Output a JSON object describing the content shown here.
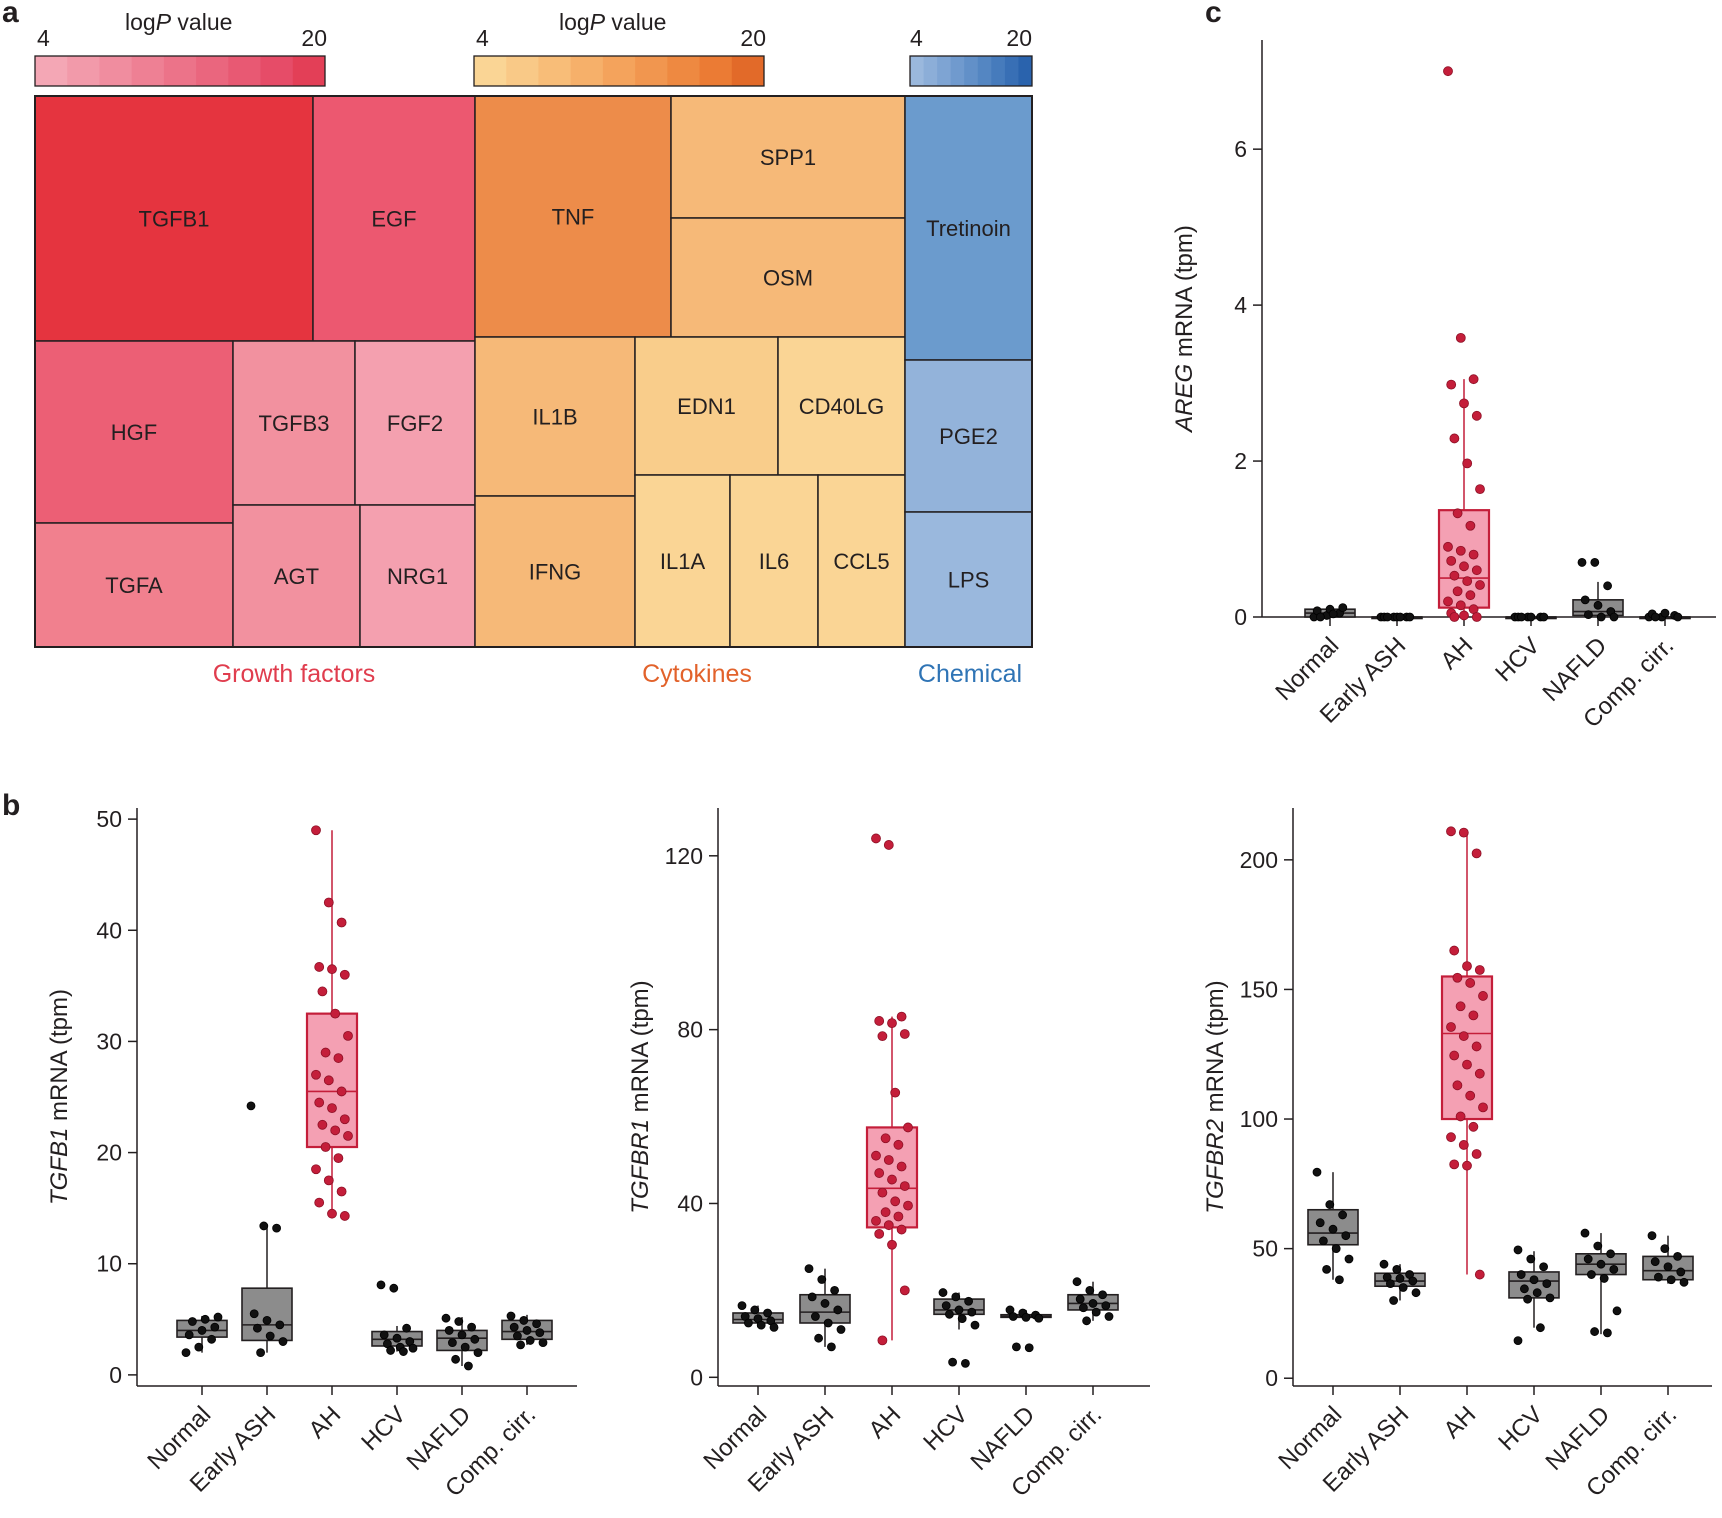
{
  "figure": {
    "panel_labels": [
      "a",
      "b",
      "c"
    ]
  },
  "treemap": {
    "legends": [
      {
        "title_prefix": "log",
        "title_italic": "P",
        "title_suffix": " value",
        "min_label": "4",
        "max_label": "20",
        "colors": [
          "#f4a7b5",
          "#f29aaa",
          "#f08d9f",
          "#ee8094",
          "#ec7389",
          "#ea667e",
          "#e85973",
          "#e64c68",
          "#e33f57"
        ]
      },
      {
        "title_prefix": "log",
        "title_italic": "P",
        "title_suffix": " value",
        "min_label": "4",
        "max_label": "20",
        "colors": [
          "#fad595",
          "#f9c987",
          "#f8bd78",
          "#f6b06a",
          "#f4a35c",
          "#f1964f",
          "#ee8941",
          "#eb7b34",
          "#e26a29"
        ]
      },
      {
        "title_prefix": "",
        "title_italic": "",
        "title_suffix": "",
        "min_label": "4",
        "max_label": "20",
        "colors": [
          "#9ab8dd",
          "#8caed8",
          "#7ea4d3",
          "#709ace",
          "#6290c8",
          "#5486c2",
          "#467bbc",
          "#386fb5",
          "#2a63ad"
        ]
      }
    ],
    "categories": [
      {
        "name": "Growth factors",
        "color": "#e03d4e"
      },
      {
        "name": "Cytokines",
        "color": "#e2622b"
      },
      {
        "name": "Chemical",
        "color": "#2f74b5"
      }
    ],
    "cells": [
      {
        "label": "TGFB1",
        "color": "#e5343f"
      },
      {
        "label": "EGF",
        "color": "#ec5870"
      },
      {
        "label": "HGF",
        "color": "#ec5f75"
      },
      {
        "label": "TGFB3",
        "color": "#f2919f"
      },
      {
        "label": "FGF2",
        "color": "#f4a0af"
      },
      {
        "label": "TGFA",
        "color": "#f1808e"
      },
      {
        "label": "AGT",
        "color": "#f2919f"
      },
      {
        "label": "NRG1",
        "color": "#f4a0af"
      },
      {
        "label": "TNF",
        "color": "#ed8c4a"
      },
      {
        "label": "SPP1",
        "color": "#f6b978"
      },
      {
        "label": "OSM",
        "color": "#f6b978"
      },
      {
        "label": "IL1B",
        "color": "#f6b978"
      },
      {
        "label": "EDN1",
        "color": "#f9cd8b"
      },
      {
        "label": "CD40LG",
        "color": "#fad595"
      },
      {
        "label": "IFNG",
        "color": "#f6b978"
      },
      {
        "label": "IL1A",
        "color": "#fad595"
      },
      {
        "label": "IL6",
        "color": "#fad595"
      },
      {
        "label": "CCL5",
        "color": "#fad595"
      },
      {
        "label": "Tretinoin",
        "color": "#6b9bcd"
      },
      {
        "label": "PGE2",
        "color": "#93b3da"
      },
      {
        "label": "LPS",
        "color": "#9ab8dd"
      }
    ]
  },
  "chart_data": [
    {
      "id": "AREG",
      "panel": "c",
      "type": "box",
      "ylabel_italic": "AREG",
      "ylabel_rest": " mRNA (tpm)",
      "ylim": [
        0,
        7.4
      ],
      "yticks": [
        0,
        2,
        4,
        6
      ],
      "categories": [
        "Normal",
        "Early ASH",
        "AH",
        "HCV",
        "NAFLD",
        "Comp. cirr."
      ],
      "highlight_category": "AH",
      "boxes": [
        {
          "q1": 0.0,
          "median": 0.05,
          "q3": 0.1,
          "whisker_low": 0.0,
          "whisker_high": 0.12
        },
        {
          "q1": 0.0,
          "median": 0.0,
          "q3": 0.0,
          "whisker_low": 0.0,
          "whisker_high": 0.0
        },
        {
          "q1": 0.12,
          "median": 0.5,
          "q3": 1.37,
          "whisker_low": 0.0,
          "whisker_high": 3.05
        },
        {
          "q1": 0.0,
          "median": 0.0,
          "q3": 0.0,
          "whisker_low": 0.0,
          "whisker_high": 0.0
        },
        {
          "q1": 0.02,
          "median": 0.07,
          "q3": 0.22,
          "whisker_low": 0.0,
          "whisker_high": 0.45
        },
        {
          "q1": 0.0,
          "median": 0.0,
          "q3": 0.0,
          "whisker_low": 0.0,
          "whisker_high": 0.0
        }
      ],
      "points": [
        [
          0.0,
          0.02,
          0.05,
          0.08,
          0.1,
          0.12,
          0.0,
          0.04
        ],
        [
          0.0,
          0.0,
          0.0,
          0.0,
          0.0,
          0.0,
          0.0,
          0.0
        ],
        [
          7.0,
          3.58,
          3.05,
          2.98,
          2.74,
          2.58,
          2.29,
          1.97,
          1.64,
          1.33,
          1.17,
          0.9,
          0.85,
          0.8,
          0.72,
          0.65,
          0.6,
          0.53,
          0.46,
          0.41,
          0.33,
          0.28,
          0.2,
          0.15,
          0.1,
          0.05,
          0.02,
          0.0,
          0.0
        ],
        [
          0.0,
          0.0,
          0.0,
          0.0,
          0.0,
          0.0,
          0.0
        ],
        [
          0.7,
          0.7,
          0.4,
          0.22,
          0.15,
          0.07,
          0.03,
          0.0,
          0.0
        ],
        [
          0.0,
          0.0,
          0.02,
          0.04,
          0.05,
          0.0,
          0.0
        ]
      ]
    },
    {
      "id": "TGFB1",
      "panel": "b",
      "type": "box",
      "ylabel_italic": "TGFB1",
      "ylabel_rest": " mRNA (tpm)",
      "ylim": [
        -1,
        51
      ],
      "yticks": [
        0,
        10,
        20,
        30,
        40,
        50
      ],
      "categories": [
        "Normal",
        "Early ASH",
        "AH",
        "HCV",
        "NAFLD",
        "Comp. cirr."
      ],
      "highlight_category": "AH",
      "boxes": [
        {
          "q1": 3.4,
          "median": 4.0,
          "q3": 4.9,
          "whisker_low": 2.0,
          "whisker_high": 5.3
        },
        {
          "q1": 3.1,
          "median": 4.5,
          "q3": 7.8,
          "whisker_low": 2.0,
          "whisker_high": 13.5
        },
        {
          "q1": 20.5,
          "median": 25.5,
          "q3": 32.5,
          "whisker_low": 14.2,
          "whisker_high": 49.0
        },
        {
          "q1": 2.6,
          "median": 3.2,
          "q3": 3.9,
          "whisker_low": 2.1,
          "whisker_high": 4.4
        },
        {
          "q1": 2.2,
          "median": 3.3,
          "q3": 4.0,
          "whisker_low": 0.8,
          "whisker_high": 5.2
        },
        {
          "q1": 3.2,
          "median": 3.9,
          "q3": 4.9,
          "whisker_low": 2.7,
          "whisker_high": 5.4
        }
      ],
      "points": [
        [
          2.0,
          2.5,
          3.2,
          3.6,
          4.0,
          4.3,
          4.8,
          5.0,
          5.2
        ],
        [
          24.2,
          13.4,
          13.2,
          5.5,
          4.9,
          4.5,
          4.2,
          3.5,
          3.0,
          2.0
        ],
        [
          49.0,
          42.5,
          40.7,
          36.7,
          36.5,
          36.0,
          34.5,
          32.5,
          30.5,
          29.0,
          28.5,
          27.0,
          26.5,
          25.5,
          24.5,
          24.0,
          23.0,
          22.5,
          22.0,
          21.5,
          20.5,
          19.5,
          18.5,
          17.5,
          16.5,
          15.5,
          14.5,
          14.3
        ],
        [
          8.1,
          7.8,
          4.2,
          3.6,
          3.3,
          3.0,
          2.8,
          2.5,
          2.4,
          2.2,
          2.1
        ],
        [
          5.1,
          4.8,
          4.3,
          4.0,
          3.6,
          3.2,
          2.9,
          2.5,
          2.0,
          1.4,
          0.8
        ],
        [
          5.3,
          4.9,
          4.6,
          4.3,
          4.0,
          3.8,
          3.5,
          3.1,
          2.9,
          2.7
        ]
      ]
    },
    {
      "id": "TGFBR1",
      "panel": "b",
      "type": "box",
      "ylabel_italic": "TGFBR1",
      "ylabel_rest": " mRNA (tpm)",
      "ylim": [
        -2,
        131
      ],
      "yticks": [
        0,
        40,
        80,
        120
      ],
      "categories": [
        "Normal",
        "Early ASH",
        "AH",
        "HCV",
        "NAFLD",
        "Comp. cirr."
      ],
      "highlight_category": "AH",
      "boxes": [
        {
          "q1": 12.5,
          "median": 13.3,
          "q3": 14.8,
          "whisker_low": 11.5,
          "whisker_high": 16.5
        },
        {
          "q1": 12.5,
          "median": 15.0,
          "q3": 19.0,
          "whisker_low": 7.0,
          "whisker_high": 25.0
        },
        {
          "q1": 34.5,
          "median": 43.5,
          "q3": 57.5,
          "whisker_low": 8.5,
          "whisker_high": 83.0
        },
        {
          "q1": 14.5,
          "median": 15.5,
          "q3": 18.0,
          "whisker_low": 11.0,
          "whisker_high": 19.5
        },
        {
          "q1": 13.8,
          "median": 14.0,
          "q3": 14.4,
          "whisker_low": 13.0,
          "whisker_high": 15.5
        },
        {
          "q1": 15.5,
          "median": 17.0,
          "q3": 19.0,
          "whisker_low": 13.0,
          "whisker_high": 22.0
        }
      ],
      "points": [
        [
          16.5,
          15.5,
          14.8,
          14.0,
          13.5,
          13.0,
          12.5,
          12.0,
          11.5
        ],
        [
          25.0,
          22.5,
          20.0,
          18.5,
          17.0,
          15.5,
          14.0,
          12.5,
          11.0,
          9.0,
          7.0
        ],
        [
          124.0,
          122.5,
          83.0,
          82.0,
          81.5,
          79.0,
          78.5,
          65.5,
          57.5,
          55.0,
          53.5,
          51.0,
          50.0,
          48.5,
          47.0,
          45.5,
          44.0,
          42.5,
          40.5,
          39.5,
          38.0,
          37.0,
          36.0,
          35.0,
          34.0,
          33.0,
          30.5,
          20.0,
          8.5
        ],
        [
          19.5,
          18.5,
          17.5,
          16.5,
          15.5,
          15.0,
          14.5,
          13.5,
          12.0,
          3.5,
          3.2
        ],
        [
          15.5,
          14.8,
          14.3,
          14.0,
          13.8,
          13.6,
          7.0,
          6.8
        ],
        [
          22.0,
          20.0,
          19.0,
          18.0,
          17.0,
          16.5,
          16.0,
          15.0,
          14.0,
          13.0
        ]
      ]
    },
    {
      "id": "TGFBR2",
      "panel": "b",
      "type": "box",
      "ylabel_italic": "TGFBR2",
      "ylabel_rest": " mRNA (tpm)",
      "ylim": [
        -3,
        220
      ],
      "yticks": [
        0,
        50,
        100,
        150,
        200
      ],
      "categories": [
        "Normal",
        "Early ASH",
        "AH",
        "HCV",
        "NAFLD",
        "Comp. cirr."
      ],
      "highlight_category": "AH",
      "boxes": [
        {
          "q1": 51.5,
          "median": 56.0,
          "q3": 65.0,
          "whisker_low": 38.0,
          "whisker_high": 79.5
        },
        {
          "q1": 35.5,
          "median": 37.5,
          "q3": 40.5,
          "whisker_low": 30.0,
          "whisker_high": 44.0
        },
        {
          "q1": 100.0,
          "median": 133.0,
          "q3": 155.0,
          "whisker_low": 40.0,
          "whisker_high": 211.0
        },
        {
          "q1": 31.0,
          "median": 37.5,
          "q3": 41.0,
          "whisker_low": 19.5,
          "whisker_high": 49.0
        },
        {
          "q1": 40.0,
          "median": 44.0,
          "q3": 48.0,
          "whisker_low": 17.0,
          "whisker_high": 56.0
        },
        {
          "q1": 38.0,
          "median": 41.5,
          "q3": 47.0,
          "whisker_low": 36.5,
          "whisker_high": 55.0
        }
      ],
      "points": [
        [
          79.5,
          67.0,
          63.0,
          60.0,
          57.5,
          55.0,
          53.0,
          50.0,
          46.0,
          42.0,
          38.0
        ],
        [
          44.0,
          42.0,
          40.0,
          39.0,
          38.5,
          37.5,
          36.5,
          35.0,
          33.0,
          30.0
        ],
        [
          211.0,
          210.5,
          202.5,
          165.0,
          159.0,
          157.5,
          154.5,
          152.5,
          147.5,
          143.5,
          140.0,
          135.5,
          132.0,
          128.0,
          124.5,
          121.0,
          117.5,
          113.0,
          109.0,
          104.5,
          101.0,
          97.0,
          93.0,
          90.0,
          86.5,
          82.5,
          82.0,
          40.0
        ],
        [
          49.5,
          46.0,
          43.0,
          40.0,
          38.0,
          36.5,
          34.5,
          33.0,
          31.0,
          30.5,
          19.5,
          14.5
        ],
        [
          56.0,
          51.0,
          48.0,
          46.0,
          44.0,
          42.0,
          40.0,
          38.5,
          26.0,
          18.0,
          17.5
        ],
        [
          55.0,
          50.0,
          47.0,
          45.0,
          43.0,
          41.0,
          39.0,
          38.0,
          37.0
        ]
      ]
    }
  ]
}
